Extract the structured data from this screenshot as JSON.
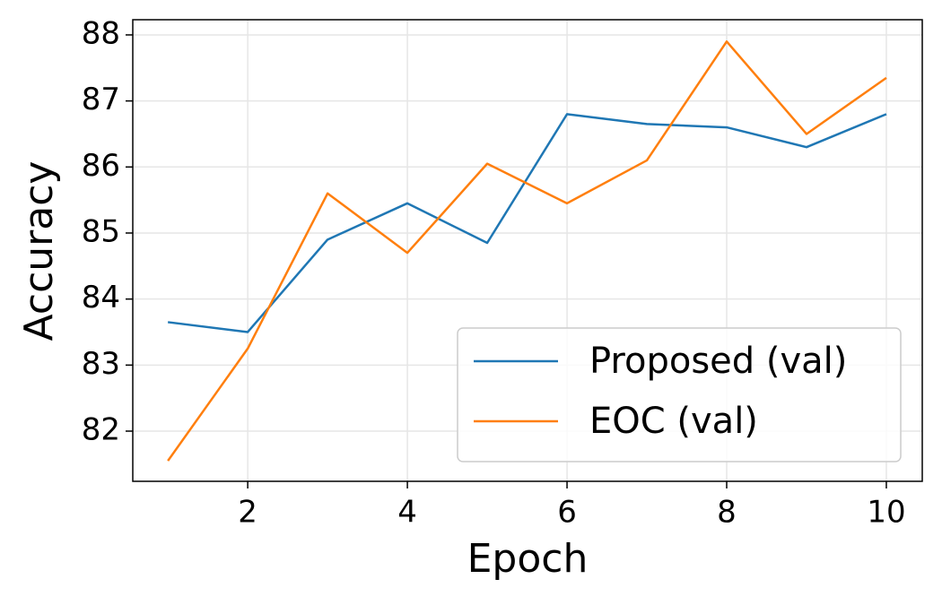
{
  "chart_data": {
    "type": "line",
    "xlabel": "Epoch",
    "ylabel": "Accuracy",
    "x": [
      1,
      2,
      3,
      4,
      5,
      6,
      7,
      8,
      9,
      10
    ],
    "series": [
      {
        "name": "Proposed (val)",
        "color": "#1f77b4",
        "values": [
          83.65,
          83.5,
          84.9,
          85.45,
          84.85,
          86.8,
          86.65,
          86.6,
          86.3,
          86.8
        ]
      },
      {
        "name": "EOC (val)",
        "color": "#ff7f0e",
        "values": [
          81.55,
          83.25,
          85.6,
          84.7,
          86.05,
          85.45,
          86.1,
          87.9,
          86.5,
          87.35
        ]
      }
    ],
    "xlim": [
      0.56,
      10.45
    ],
    "ylim": [
      81.24,
      88.23
    ],
    "xticks": [
      2,
      4,
      6,
      8,
      10
    ],
    "yticks": [
      82,
      83,
      84,
      85,
      86,
      87,
      88
    ],
    "grid": true,
    "legend": "lower right"
  }
}
